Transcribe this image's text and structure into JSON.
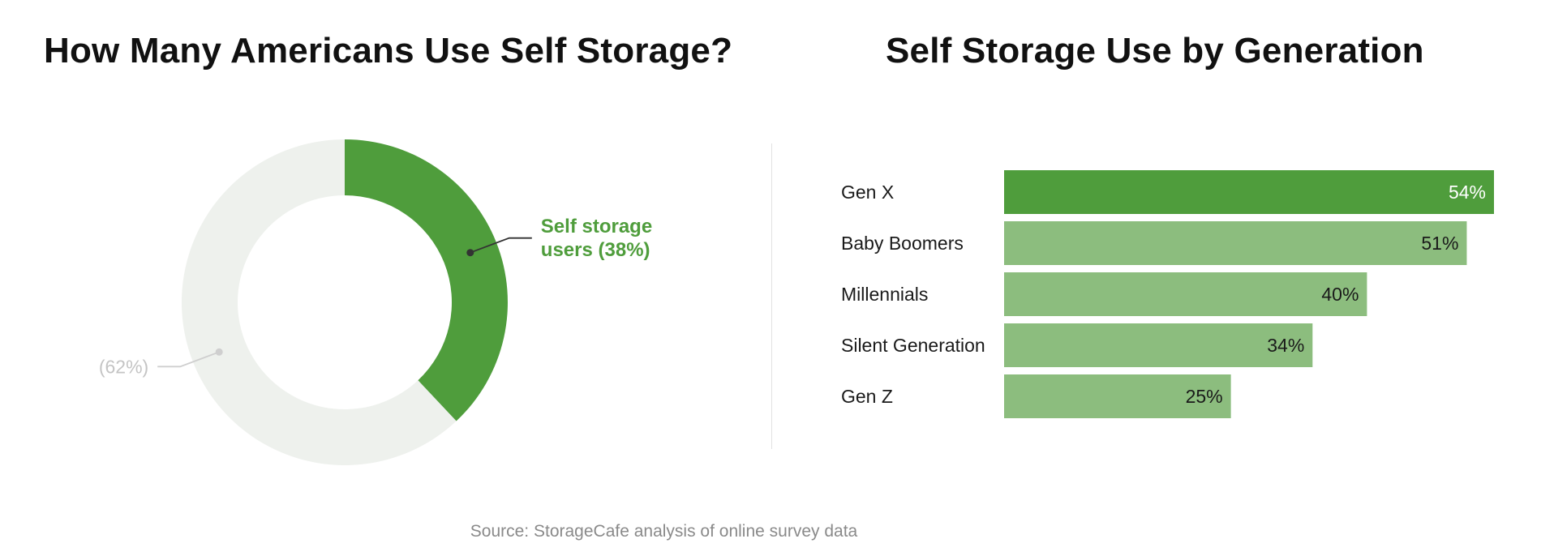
{
  "footer": {
    "source": "Source: StorageCafe analysis of online survey data"
  },
  "colors": {
    "primary_green": "#4f9d3c",
    "light_green": "#8cbd7e",
    "donut_remainder": "#eef1ed",
    "remainder_label": "#c4c4c4",
    "leader_dark": "#333333"
  },
  "chart_data": [
    {
      "type": "pie",
      "title": "How Many Americans Use Self Storage?",
      "style": "donut",
      "slices": [
        {
          "label": "Self storage users (38%)",
          "label_lines": [
            "Self storage",
            "users (38%)"
          ],
          "value": 38,
          "color": "#4f9d3c"
        },
        {
          "label": "(62%)",
          "label_lines": [
            "(62%)"
          ],
          "value": 62,
          "color": "#eef1ed"
        }
      ]
    },
    {
      "type": "bar",
      "orientation": "horizontal",
      "title": "Self Storage Use by Generation",
      "categories": [
        "Gen X",
        "Baby Boomers",
        "Millennials",
        "Silent Generation",
        "Gen Z"
      ],
      "values": [
        54,
        51,
        40,
        34,
        25
      ],
      "value_labels": [
        "54%",
        "51%",
        "40%",
        "34%",
        "25%"
      ],
      "highlight_index": 0,
      "xlim": [
        0,
        54
      ]
    }
  ]
}
